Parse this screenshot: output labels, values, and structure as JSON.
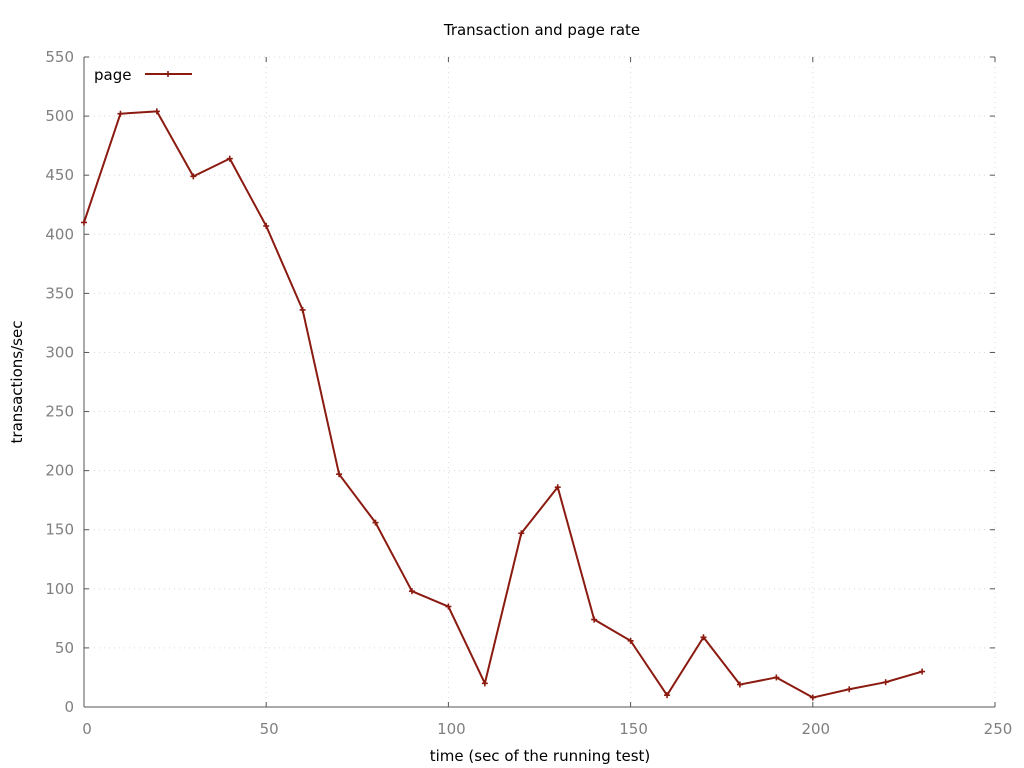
{
  "chart_data": {
    "type": "line",
    "title": "Transaction and page rate",
    "xlabel": "time (sec of the running test)",
    "ylabel": "transactions/sec",
    "xlim": [
      0,
      250
    ],
    "ylim": [
      0,
      550
    ],
    "xticks": [
      0,
      50,
      100,
      150,
      200,
      250
    ],
    "yticks": [
      0,
      50,
      100,
      150,
      200,
      250,
      300,
      350,
      400,
      450,
      500,
      550
    ],
    "grid": true,
    "legend_position": "top-left",
    "series": [
      {
        "name": "page",
        "color": "#8b1a10",
        "x": [
          0,
          10,
          20,
          30,
          40,
          50,
          60,
          70,
          80,
          90,
          100,
          110,
          120,
          130,
          140,
          150,
          160,
          170,
          180,
          190,
          200,
          210,
          220,
          230
        ],
        "y": [
          410,
          502,
          504,
          449,
          464,
          407,
          336,
          197,
          156,
          98,
          85,
          20,
          147,
          186,
          74,
          56,
          10,
          59,
          19,
          25,
          8,
          15,
          21,
          30
        ]
      }
    ]
  }
}
